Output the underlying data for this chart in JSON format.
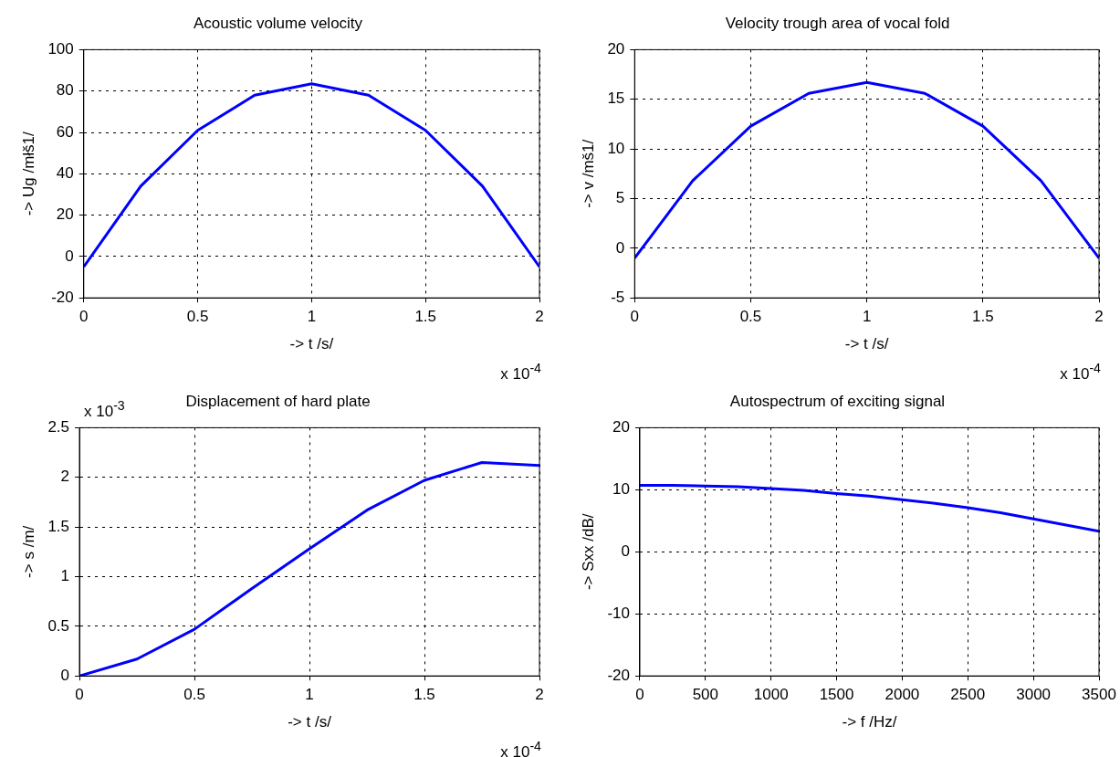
{
  "chart_data": [
    {
      "type": "line",
      "title": "Acoustic volume velocity",
      "xlabel": "-> t /s/",
      "ylabel": "-> Ug /młš1/",
      "x": [
        0,
        0.25,
        0.5,
        0.75,
        1,
        1.25,
        1.5,
        1.75,
        2
      ],
      "series": [
        {
          "color": "#0000ff",
          "values": [
            -5,
            34,
            61,
            78,
            83.5,
            78,
            61,
            34,
            -5
          ]
        }
      ],
      "xlim": [
        0,
        2
      ],
      "xticks": [
        0,
        0.5,
        1,
        1.5,
        2
      ],
      "ylim": [
        -20,
        100
      ],
      "yticks": [
        -20,
        0,
        20,
        40,
        60,
        80,
        100
      ],
      "grid": true,
      "annotations": [
        "x 10$^{-4}$"
      ]
    },
    {
      "type": "line",
      "title": "Velocity trough area of vocal fold",
      "xlabel": "-> t /s/",
      "ylabel": "-> v /mš1/",
      "x": [
        0,
        0.25,
        0.5,
        0.75,
        1,
        1.25,
        1.5,
        1.75,
        2
      ],
      "series": [
        {
          "color": "#0000ff",
          "values": [
            -1,
            6.8,
            12.3,
            15.6,
            16.7,
            15.6,
            12.3,
            6.8,
            -1
          ]
        }
      ],
      "xlim": [
        0,
        2
      ],
      "xticks": [
        0,
        0.5,
        1,
        1.5,
        2
      ],
      "ylim": [
        -5,
        20
      ],
      "yticks": [
        -5,
        0,
        5,
        10,
        15,
        20
      ],
      "grid": true,
      "annotations": [
        "x 10$^{-4}$"
      ]
    },
    {
      "type": "line",
      "title": "Displacement of hard plate",
      "xlabel": "-> t /s/",
      "ylabel": "-> s /m/",
      "x": [
        0,
        0.25,
        0.5,
        0.75,
        1,
        1.25,
        1.5,
        1.75,
        2
      ],
      "series": [
        {
          "color": "#0000ff",
          "values": [
            0,
            0.17,
            0.47,
            0.88,
            1.28,
            1.67,
            1.97,
            2.15,
            2.12
          ]
        }
      ],
      "xlim": [
        0,
        2
      ],
      "xticks": [
        0,
        0.5,
        1,
        1.5,
        2
      ],
      "ylim": [
        0,
        2.5
      ],
      "yticks": [
        0,
        0.5,
        1,
        1.5,
        2,
        2.5
      ],
      "grid": true,
      "annotations": [
        "x 10$^{-3}$",
        "x 10$^{-4}$"
      ]
    },
    {
      "type": "line",
      "title": "Autospectrum of exciting signal",
      "xlabel": "-> f /Hz/",
      "ylabel": "-> Sxx /dB/",
      "x": [
        0,
        250,
        500,
        750,
        1000,
        1250,
        1500,
        1750,
        2000,
        2250,
        2500,
        2750,
        3000,
        3250,
        3500
      ],
      "series": [
        {
          "color": "#0000ff",
          "values": [
            10.7,
            10.7,
            10.6,
            10.5,
            10.2,
            9.9,
            9.4,
            9.0,
            8.4,
            7.8,
            7.1,
            6.3,
            5.3,
            4.3,
            3.3
          ]
        }
      ],
      "xlim": [
        0,
        3500
      ],
      "xticks": [
        0,
        500,
        1000,
        1500,
        2000,
        2500,
        3000,
        3500
      ],
      "ylim": [
        -20,
        20
      ],
      "yticks": [
        -20,
        -10,
        0,
        10,
        20
      ],
      "grid": true
    }
  ]
}
